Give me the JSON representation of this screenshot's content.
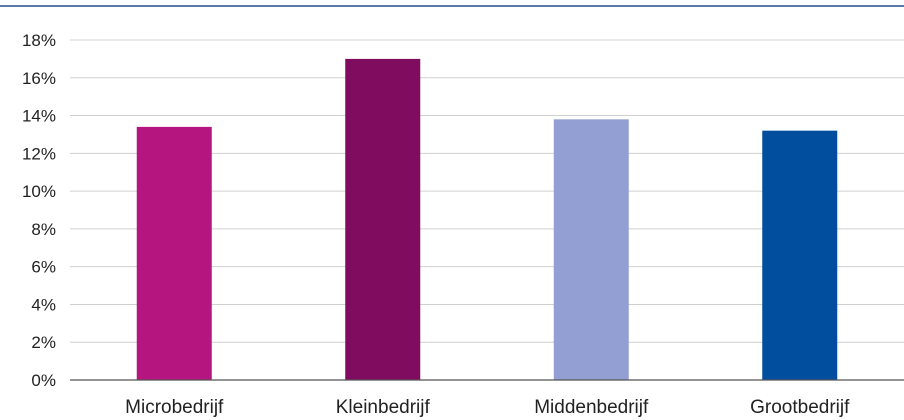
{
  "chart_data": {
    "type": "bar",
    "categories": [
      "Microbedrijf",
      "Kleinbedrijf",
      "Middenbedrijf",
      "Grootbedrijf"
    ],
    "values": [
      13.4,
      17.0,
      13.8,
      13.2
    ],
    "colors": [
      "#b5157f",
      "#800c5f",
      "#939fd2",
      "#014e9e"
    ],
    "y_ticks": [
      "0%",
      "2%",
      "4%",
      "6%",
      "8%",
      "10%",
      "12%",
      "14%",
      "16%",
      "18%"
    ],
    "ylim": [
      0,
      18
    ],
    "grid": true,
    "top_rule_color": "#1f4e8c",
    "grid_color": "#d0d0d0",
    "axis_color": "#555555"
  }
}
